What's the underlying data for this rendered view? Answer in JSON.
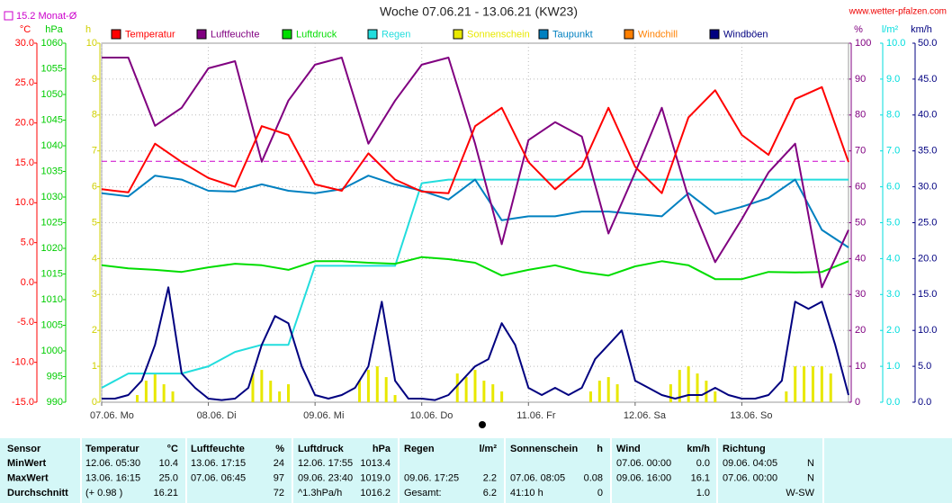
{
  "chart_data": {
    "type": "line",
    "title": "Woche 07.06.21 - 13.06.21 (KW23)",
    "source": "www.wetter-pfalzen.com",
    "reference": {
      "label": "15.2 Monat-Ø",
      "value": 15.2,
      "color": "#cc00cc",
      "axis": "°C"
    },
    "xlim": [
      0,
      168
    ],
    "xticks": [
      {
        "value": 0,
        "label": "07.06. Mo"
      },
      {
        "value": 24,
        "label": "08.06. Di"
      },
      {
        "value": 48,
        "label": "09.06. Mi"
      },
      {
        "value": 72,
        "label": "10.06. Do"
      },
      {
        "value": 96,
        "label": "11.06. Fr"
      },
      {
        "value": 120,
        "label": "12.06. Sa"
      },
      {
        "value": 144,
        "label": "13.06. So"
      }
    ],
    "grid": true,
    "axes": [
      {
        "name": "°C",
        "side": "left",
        "color": "#ff0000",
        "lim": [
          -15,
          30
        ],
        "ticks": [
          {
            "value": -15,
            "label": "-15.0"
          },
          {
            "value": -10,
            "label": "-10.0"
          },
          {
            "value": -5,
            "label": "-5.0"
          },
          {
            "value": 0,
            "label": "0.0"
          },
          {
            "value": 5,
            "label": "5.0"
          },
          {
            "value": 10,
            "label": "10.0"
          },
          {
            "value": 15,
            "label": "15.0"
          },
          {
            "value": 20,
            "label": "20.0"
          },
          {
            "value": 25,
            "label": "25.0"
          },
          {
            "value": 30,
            "label": "30.0"
          }
        ]
      },
      {
        "name": "hPa",
        "side": "left",
        "color": "#00cc00",
        "lim": [
          990,
          1060
        ],
        "ticks": [
          990,
          995,
          1000,
          1005,
          1010,
          1015,
          1020,
          1025,
          1030,
          1035,
          1040,
          1045,
          1050,
          1055,
          1060
        ]
      },
      {
        "name": "h",
        "side": "left",
        "color": "#d0d000",
        "lim": [
          0,
          10
        ],
        "ticks": [
          0,
          1,
          2,
          3,
          4,
          5,
          6,
          7,
          8,
          9,
          10
        ]
      },
      {
        "name": "%",
        "side": "right",
        "color": "#800080",
        "lim": [
          0,
          100
        ],
        "ticks": [
          0,
          10,
          20,
          30,
          40,
          50,
          60,
          70,
          80,
          90,
          100
        ]
      },
      {
        "name": "l/m²",
        "side": "right",
        "color": "#00dddd",
        "lim": [
          0,
          10
        ],
        "ticks": [
          {
            "value": 0,
            "label": "0.0"
          },
          {
            "value": 1,
            "label": "1.0"
          },
          {
            "value": 2,
            "label": "2.0"
          },
          {
            "value": 3,
            "label": "3.0"
          },
          {
            "value": 4,
            "label": "4.0"
          },
          {
            "value": 5,
            "label": "5.0"
          },
          {
            "value": 6,
            "label": "6.0"
          },
          {
            "value": 7,
            "label": "7.0"
          },
          {
            "value": 8,
            "label": "8.0"
          },
          {
            "value": 9,
            "label": "9.0"
          },
          {
            "value": 10,
            "label": "10.0"
          }
        ]
      },
      {
        "name": "km/h",
        "side": "right",
        "color": "#000080",
        "lim": [
          0,
          50
        ],
        "ticks": [
          {
            "value": 0,
            "label": "0.0"
          },
          {
            "value": 5,
            "label": "5.0"
          },
          {
            "value": 10,
            "label": "10.0"
          },
          {
            "value": 15,
            "label": "15.0"
          },
          {
            "value": 20,
            "label": "20.0"
          },
          {
            "value": 25,
            "label": "25.0"
          },
          {
            "value": 30,
            "label": "30.0"
          },
          {
            "value": 35,
            "label": "35.0"
          },
          {
            "value": 40,
            "label": "40.0"
          },
          {
            "value": 45,
            "label": "45.0"
          },
          {
            "value": 50,
            "label": "50.0"
          }
        ]
      }
    ],
    "x": [
      0,
      6,
      12,
      18,
      24,
      30,
      36,
      42,
      48,
      54,
      60,
      66,
      72,
      78,
      84,
      90,
      96,
      102,
      108,
      114,
      120,
      126,
      132,
      138,
      144,
      150,
      156,
      162,
      168
    ],
    "series": [
      {
        "name": "Temperatur",
        "color": "#ff0000",
        "axis": "°C",
        "kind": "line",
        "values": [
          11.7,
          11.3,
          17.4,
          15.1,
          13.1,
          12.0,
          19.6,
          18.5,
          12.3,
          11.5,
          16.2,
          12.9,
          11.4,
          11.2,
          19.6,
          21.9,
          15.1,
          11.7,
          14.5,
          21.9,
          14.5,
          11.2,
          20.7,
          24.1,
          18.5,
          16.0,
          23.0,
          24.5,
          15.1
        ]
      },
      {
        "name": "Luftfeuchte",
        "color": "#800080",
        "axis": "%",
        "kind": "line",
        "values": [
          96,
          96,
          77,
          82,
          93,
          95,
          67,
          84,
          94,
          96,
          72,
          84,
          94,
          96,
          72,
          44,
          73,
          78,
          74,
          47,
          64,
          82,
          57,
          39,
          51,
          64,
          72,
          32,
          48
        ]
      },
      {
        "name": "Luftdruck",
        "color": "#00dd00",
        "axis": "hPa",
        "kind": "line",
        "values": [
          1016.7,
          1016.1,
          1015.8,
          1015.4,
          1016.3,
          1017.0,
          1016.7,
          1015.8,
          1017.5,
          1017.5,
          1017.2,
          1017.0,
          1018.3,
          1017.9,
          1017.2,
          1014.7,
          1015.8,
          1016.7,
          1015.4,
          1014.7,
          1016.5,
          1017.5,
          1016.7,
          1014.0,
          1014.0,
          1015.4,
          1015.3,
          1015.4,
          1017.5
        ]
      },
      {
        "name": "Regen",
        "color": "#22dddd",
        "axis": "l/m²",
        "kind": "line",
        "values": [
          0.4,
          0.8,
          0.8,
          0.8,
          1.0,
          1.4,
          1.6,
          1.6,
          3.8,
          3.8,
          3.8,
          3.8,
          6.1,
          6.2,
          6.2,
          6.2,
          6.2,
          6.2,
          6.2,
          6.2,
          6.2,
          6.2,
          6.2,
          6.2,
          6.2,
          6.2,
          6.2,
          6.2,
          6.2
        ]
      },
      {
        "name": "Sonnenschein",
        "color": "#e8e800",
        "axis": "h",
        "kind": "bar",
        "x": [
          6,
          8,
          10,
          12,
          14,
          16,
          18,
          20,
          30,
          32,
          34,
          36,
          38,
          40,
          42,
          44,
          54,
          56,
          58,
          60,
          62,
          64,
          66,
          68,
          78,
          80,
          82,
          84,
          86,
          88,
          90,
          92,
          102,
          104,
          106,
          108,
          110,
          112,
          114,
          116,
          126,
          128,
          130,
          132,
          134,
          136,
          138,
          140,
          150,
          152,
          154,
          156,
          158,
          160,
          162,
          164
        ],
        "values": [
          0,
          0.2,
          0.6,
          0.8,
          0.5,
          0.3,
          0,
          0,
          0,
          0,
          0.8,
          0.9,
          0.6,
          0.3,
          0.5,
          0,
          0,
          0,
          0.6,
          0.9,
          1.0,
          0.7,
          0.2,
          0,
          0,
          0.8,
          0.7,
          0.9,
          0.6,
          0.5,
          0.3,
          0,
          0,
          0,
          0,
          0,
          0.3,
          0.6,
          0.7,
          0.5,
          0,
          0.5,
          0.9,
          1.0,
          0.8,
          0.6,
          0.3,
          0,
          0,
          0,
          0.3,
          1.0,
          1.0,
          1.0,
          1.0,
          0.8
        ]
      },
      {
        "name": "Taupunkt",
        "color": "#0080c0",
        "axis": "°C",
        "kind": "line",
        "values": [
          11.2,
          10.8,
          13.4,
          12.9,
          11.5,
          11.4,
          12.3,
          11.5,
          11.2,
          11.7,
          13.4,
          12.3,
          11.5,
          10.4,
          12.9,
          7.8,
          8.3,
          8.3,
          8.9,
          8.9,
          8.6,
          8.3,
          11.2,
          8.6,
          9.5,
          10.6,
          12.9,
          6.6,
          4.4
        ]
      },
      {
        "name": "Windchill",
        "color": "#ff8000",
        "axis": "°C",
        "kind": "line"
      },
      {
        "name": "Windböen",
        "color": "#000080",
        "axis": "km/h",
        "kind": "line",
        "x": [
          0,
          3,
          6,
          9,
          12,
          15,
          18,
          21,
          24,
          27,
          30,
          33,
          36,
          39,
          42,
          45,
          48,
          51,
          54,
          57,
          60,
          63,
          66,
          69,
          72,
          75,
          78,
          81,
          84,
          87,
          90,
          93,
          96,
          99,
          102,
          105,
          108,
          111,
          114,
          117,
          120,
          123,
          126,
          129,
          132,
          135,
          138,
          141,
          144,
          147,
          150,
          153,
          156,
          159,
          162,
          165,
          168
        ],
        "values": [
          0.5,
          0.5,
          1,
          3,
          8,
          16,
          4,
          2,
          0.5,
          0.3,
          0.5,
          2,
          8,
          12,
          11,
          5,
          1,
          0.5,
          1,
          2,
          5,
          14,
          3,
          0.5,
          0.5,
          0.3,
          1,
          3,
          5,
          6,
          11,
          8,
          2,
          1,
          2,
          1,
          2,
          6,
          8,
          10,
          3,
          2,
          1,
          0.5,
          1,
          1,
          2,
          1,
          0.5,
          0.5,
          1,
          3,
          14,
          13,
          14,
          8,
          1
        ]
      }
    ]
  },
  "table": {
    "columns": [
      {
        "title": "Sensor"
      },
      {
        "title": "Temperatur",
        "unit": "°C"
      },
      {
        "title": "Luftfeuchte",
        "unit": "%"
      },
      {
        "title": "Luftdruck",
        "unit": "hPa"
      },
      {
        "title": "Regen",
        "unit": "l/m²"
      },
      {
        "title": "Sonnenschein",
        "unit": "h"
      },
      {
        "title": "Wind",
        "unit": "km/h"
      },
      {
        "title": "Richtung"
      }
    ],
    "rows": [
      [
        "MinWert",
        "12.06. 05:30",
        "10.4",
        "13.06. 17:15",
        "24",
        "12.06. 17:55",
        "1013.4",
        null,
        null,
        null,
        null,
        "07.06. 00:00",
        "0.0",
        "09.06. 04:05",
        "N"
      ],
      [
        "MaxWert",
        "13.06. 16:15",
        "25.0",
        "07.06. 06:45",
        "97",
        "09.06. 23:40",
        "1019.0",
        "09.06. 17:25",
        "2.2",
        "07.06. 08:05",
        "0.08",
        "09.06. 16:00",
        "16.1",
        "07.06. 00:00",
        "N"
      ],
      [
        "Durchschnitt",
        "(+ 0.98 )",
        "16.21",
        null,
        "72",
        "^1.3hPa/h",
        "1016.2",
        "Gesamt:",
        "6.2",
        "41:10 h",
        "0",
        null,
        "1.0",
        null,
        "W-SW"
      ]
    ]
  }
}
